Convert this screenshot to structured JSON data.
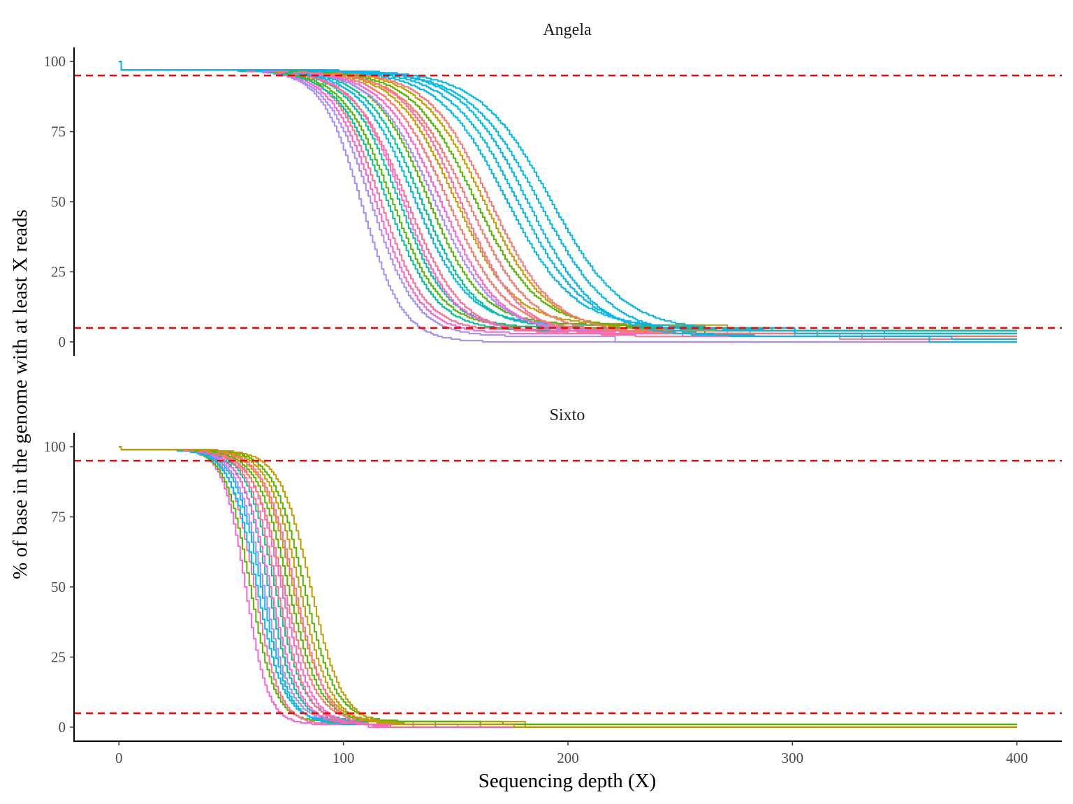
{
  "chart_data": {
    "type": "line",
    "xlabel": "Sequencing depth (X)",
    "ylabel": "% of base in the genome with at least X reads",
    "xlim": [
      -20,
      420
    ],
    "ylim": [
      -5,
      105
    ],
    "x_ticks": [
      0,
      100,
      200,
      300,
      400
    ],
    "y_ticks": [
      0,
      25,
      50,
      75,
      100
    ],
    "reference_lines": {
      "y": [
        5,
        95
      ],
      "color": "#ff0000",
      "style": "dashed"
    },
    "grid": false,
    "legend": "none",
    "palette": [
      "#f8766d",
      "#c49a00",
      "#53b400",
      "#00c094",
      "#00b6eb",
      "#a58aff",
      "#fb61d7",
      "#ff6c91"
    ],
    "panels": [
      {
        "title": "Angela",
        "series": [
          {
            "color": "#a58aff",
            "start": 97,
            "mid": 108,
            "scale": 9,
            "tail": 0,
            "tail_x": 290
          },
          {
            "color": "#a58aff",
            "start": 97,
            "mid": 112,
            "scale": 10,
            "tail": 2,
            "tail_x": 220
          },
          {
            "color": "#fb61d7",
            "start": 97,
            "mid": 114,
            "scale": 10,
            "tail": 3,
            "tail_x": 250
          },
          {
            "color": "#ff6c91",
            "start": 97,
            "mid": 116,
            "scale": 10,
            "tail": 4,
            "tail_x": 300
          },
          {
            "color": "#00c094",
            "start": 97,
            "mid": 119,
            "scale": 11,
            "tail": 4,
            "tail_x": 260
          },
          {
            "color": "#53b400",
            "start": 97,
            "mid": 121,
            "scale": 11,
            "tail": 5,
            "tail_x": 240
          },
          {
            "color": "#00c094",
            "start": 97,
            "mid": 124,
            "scale": 11,
            "tail": 5,
            "tail_x": 280
          },
          {
            "color": "#fb61d7",
            "start": 97,
            "mid": 126,
            "scale": 11,
            "tail": 4,
            "tail_x": 270
          },
          {
            "color": "#ff6c91",
            "start": 97,
            "mid": 128,
            "scale": 12,
            "tail": 3,
            "tail_x": 310
          },
          {
            "color": "#00b6eb",
            "start": 97,
            "mid": 131,
            "scale": 12,
            "tail": 6,
            "tail_x": 250
          },
          {
            "color": "#00c094",
            "start": 97,
            "mid": 134,
            "scale": 12,
            "tail": 5,
            "tail_x": 300
          },
          {
            "color": "#53b400",
            "start": 97,
            "mid": 137,
            "scale": 12,
            "tail": 6,
            "tail_x": 260
          },
          {
            "color": "#a58aff",
            "start": 97,
            "mid": 140,
            "scale": 13,
            "tail": 4,
            "tail_x": 280
          },
          {
            "color": "#fb61d7",
            "start": 97,
            "mid": 143,
            "scale": 13,
            "tail": 3,
            "tail_x": 330
          },
          {
            "color": "#f8766d",
            "start": 97,
            "mid": 146,
            "scale": 13,
            "tail": 4,
            "tail_x": 300
          },
          {
            "color": "#c49a00",
            "start": 97,
            "mid": 149,
            "scale": 13,
            "tail": 6,
            "tail_x": 270
          },
          {
            "color": "#ff6c91",
            "start": 97,
            "mid": 152,
            "scale": 13,
            "tail": 2,
            "tail_x": 340
          },
          {
            "color": "#f8766d",
            "start": 97,
            "mid": 155,
            "scale": 14,
            "tail": 3,
            "tail_x": 320
          },
          {
            "color": "#53b400",
            "start": 97,
            "mid": 158,
            "scale": 14,
            "tail": 5,
            "tail_x": 290
          },
          {
            "color": "#c49a00",
            "start": 97,
            "mid": 162,
            "scale": 14,
            "tail": 4,
            "tail_x": 310
          },
          {
            "color": "#f8766d",
            "start": 97,
            "mid": 165,
            "scale": 14,
            "tail": 3,
            "tail_x": 330
          },
          {
            "color": "#00b6eb",
            "start": 97,
            "mid": 172,
            "scale": 15,
            "tail": 5,
            "tail_x": 300
          },
          {
            "color": "#00b6eb",
            "start": 97,
            "mid": 177,
            "scale": 15,
            "tail": 4,
            "tail_x": 340
          },
          {
            "color": "#00b6eb",
            "start": 97,
            "mid": 182,
            "scale": 15,
            "tail": 2,
            "tail_x": 360
          },
          {
            "color": "#00b6eb",
            "start": 97,
            "mid": 187,
            "scale": 16,
            "tail": 2,
            "tail_x": 370
          },
          {
            "color": "#00b6eb",
            "start": 97,
            "mid": 192,
            "scale": 16,
            "tail": 4,
            "tail_x": 400
          }
        ]
      },
      {
        "title": "Sixto",
        "series": [
          {
            "color": "#fb61d7",
            "start": 99,
            "mid": 56,
            "scale": 5,
            "tail": 1,
            "tail_x": 110
          },
          {
            "color": "#53b400",
            "start": 99,
            "mid": 58,
            "scale": 5.5,
            "tail": 2,
            "tail_x": 120
          },
          {
            "color": "#ff6c91",
            "start": 99,
            "mid": 60,
            "scale": 5.5,
            "tail": 1,
            "tail_x": 130
          },
          {
            "color": "#00b6eb",
            "start": 99,
            "mid": 61,
            "scale": 6,
            "tail": 2,
            "tail_x": 140
          },
          {
            "color": "#00b6eb",
            "start": 99,
            "mid": 63,
            "scale": 6,
            "tail": 1,
            "tail_x": 150
          },
          {
            "color": "#a58aff",
            "start": 99,
            "mid": 64,
            "scale": 6,
            "tail": 2,
            "tail_x": 130
          },
          {
            "color": "#00c094",
            "start": 99,
            "mid": 66,
            "scale": 6,
            "tail": 2,
            "tail_x": 160
          },
          {
            "color": "#fb61d7",
            "start": 99,
            "mid": 67,
            "scale": 6.5,
            "tail": 1,
            "tail_x": 150
          },
          {
            "color": "#00c094",
            "start": 99,
            "mid": 69,
            "scale": 6.5,
            "tail": 2,
            "tail_x": 170
          },
          {
            "color": "#ff6c91",
            "start": 99,
            "mid": 70,
            "scale": 6.5,
            "tail": 1,
            "tail_x": 160
          },
          {
            "color": "#fb61d7",
            "start": 99,
            "mid": 72,
            "scale": 6.5,
            "tail": 1,
            "tail_x": 180
          },
          {
            "color": "#f8766d",
            "start": 99,
            "mid": 73,
            "scale": 7,
            "tail": 2,
            "tail_x": 160
          },
          {
            "color": "#53b400",
            "start": 99,
            "mid": 75,
            "scale": 7,
            "tail": 2,
            "tail_x": 170
          },
          {
            "color": "#c49a00",
            "start": 99,
            "mid": 77,
            "scale": 7,
            "tail": 2,
            "tail_x": 180
          },
          {
            "color": "#ff6c91",
            "start": 99,
            "mid": 78,
            "scale": 7,
            "tail": 0,
            "tail_x": 280
          },
          {
            "color": "#c49a00",
            "start": 99,
            "mid": 80,
            "scale": 7,
            "tail": 1,
            "tail_x": 175
          },
          {
            "color": "#53b400",
            "start": 99,
            "mid": 82,
            "scale": 7,
            "tail": 2,
            "tail_x": 160
          },
          {
            "color": "#c49a00",
            "start": 99,
            "mid": 85,
            "scale": 7,
            "tail": 1,
            "tail_x": 175
          }
        ]
      }
    ]
  }
}
